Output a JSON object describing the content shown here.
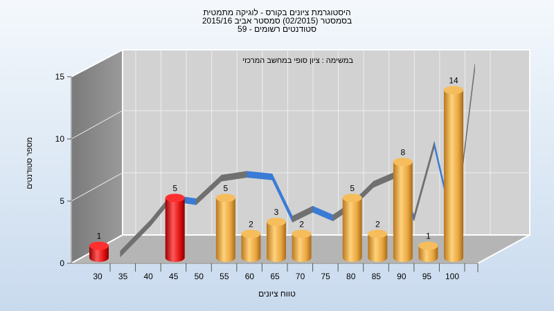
{
  "title_lines": [
    "היסטוגרמת ציונים בקורס - לוגיקה מתמטית",
    "בסמסטר  (02/2015)  סמסטר אביב 2015/16",
    "סטודנטים רשומים - 59"
  ],
  "chart_data": {
    "type": "bar",
    "title": "היסטוגרמת ציונים בקורס - לוגיקה מתמטית",
    "subtitle": "במשימה : ציון סופי במחשב המרכזי",
    "xlabel": "טווח ציונים",
    "ylabel": "מספר סטודנטים",
    "ylim": [
      0,
      15
    ],
    "y_ticks": [
      "0",
      "5",
      "10",
      "15"
    ],
    "x_ticks": [
      "30",
      "35",
      "40",
      "45",
      "50",
      "55",
      "60",
      "65",
      "70",
      "75",
      "80",
      "85",
      "90",
      "95",
      "100"
    ],
    "grid": true,
    "bars": [
      {
        "bin": 30,
        "value": 1,
        "label": "1",
        "color": "#e01010"
      },
      {
        "bin": 45,
        "value": 5,
        "label": "5",
        "color": "#e01010"
      },
      {
        "bin": 55,
        "value": 5,
        "label": "5",
        "color": "#e8a640"
      },
      {
        "bin": 60,
        "value": 2,
        "label": "2",
        "color": "#e8a640"
      },
      {
        "bin": 65,
        "value": 3,
        "label": "3",
        "color": "#e8a640"
      },
      {
        "bin": 70,
        "value": 2,
        "label": "2",
        "color": "#e8a640"
      },
      {
        "bin": 80,
        "value": 5,
        "label": "5",
        "color": "#e8a640"
      },
      {
        "bin": 85,
        "value": 2,
        "label": "2",
        "color": "#e8a640"
      },
      {
        "bin": 90,
        "value": 8,
        "label": "8",
        "color": "#e8a640"
      },
      {
        "bin": 95,
        "value": 1,
        "label": "1",
        "color": "#e8a640"
      },
      {
        "bin": 100,
        "value": 14,
        "label": "14",
        "color": "#e8a640"
      }
    ],
    "trend_ribbon": {
      "x": [
        32,
        38,
        42,
        47,
        52,
        57,
        62,
        66,
        70,
        74,
        78,
        82,
        86,
        90,
        94,
        98,
        102
      ],
      "y": [
        0,
        2.5,
        4.5,
        4.2,
        6.1,
        6.4,
        6.2,
        2.8,
        3.6,
        2.9,
        4.0,
        5.6,
        6.3,
        2.9,
        8.8,
        1.8,
        15.0
      ],
      "color_front": "#3a7bd5",
      "color_back": "#707070"
    }
  }
}
